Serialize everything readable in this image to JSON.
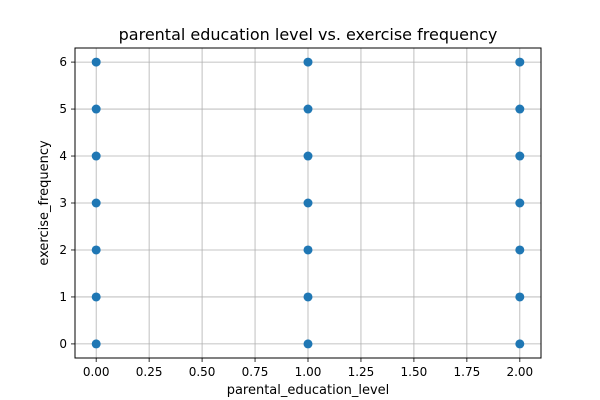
{
  "chart_data": {
    "type": "scatter",
    "title": "parental education level vs. exercise frequency",
    "xlabel": "parental_education_level",
    "ylabel": "exercise_frequency",
    "xlim": [
      -0.1,
      2.1
    ],
    "ylim": [
      -0.3,
      6.3
    ],
    "xticks": [
      "0.00",
      "0.25",
      "0.50",
      "0.75",
      "1.00",
      "1.25",
      "1.50",
      "1.75",
      "2.00"
    ],
    "yticks": [
      "0",
      "1",
      "2",
      "3",
      "4",
      "5",
      "6"
    ],
    "grid": true,
    "marker_color": "#1f77b4",
    "points": [
      {
        "x": 0,
        "y": 0
      },
      {
        "x": 0,
        "y": 1
      },
      {
        "x": 0,
        "y": 2
      },
      {
        "x": 0,
        "y": 3
      },
      {
        "x": 0,
        "y": 4
      },
      {
        "x": 0,
        "y": 5
      },
      {
        "x": 0,
        "y": 6
      },
      {
        "x": 1,
        "y": 0
      },
      {
        "x": 1,
        "y": 1
      },
      {
        "x": 1,
        "y": 2
      },
      {
        "x": 1,
        "y": 3
      },
      {
        "x": 1,
        "y": 4
      },
      {
        "x": 1,
        "y": 5
      },
      {
        "x": 1,
        "y": 6
      },
      {
        "x": 2,
        "y": 0
      },
      {
        "x": 2,
        "y": 1
      },
      {
        "x": 2,
        "y": 2
      },
      {
        "x": 2,
        "y": 3
      },
      {
        "x": 2,
        "y": 4
      },
      {
        "x": 2,
        "y": 5
      },
      {
        "x": 2,
        "y": 6
      }
    ]
  }
}
